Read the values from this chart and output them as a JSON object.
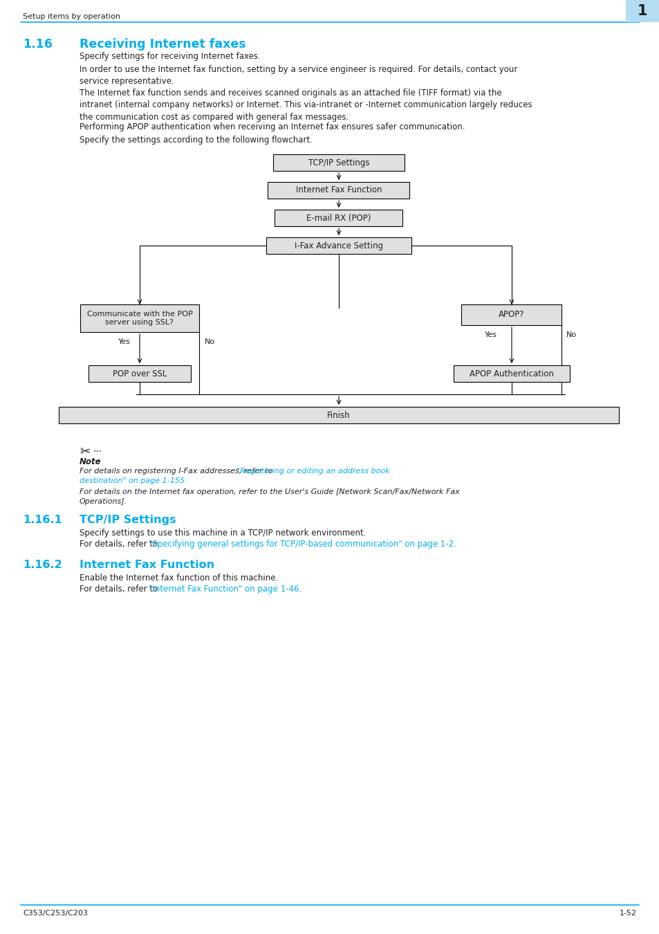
{
  "page_header_text": "Setup items by operation",
  "page_number": "1",
  "page_footer_left": "C353/C253/C203",
  "page_footer_right": "1-52",
  "cyan_color": "#00aeef",
  "dark_text": "#231f20",
  "section_number": "1.16",
  "section_title": "Receiving Internet faxes",
  "para1": "Specify settings for receiving Internet faxes.",
  "para2": "In order to use the Internet fax function, setting by a service engineer is required. For details, contact your\nservice representative.",
  "para3": "The Internet fax function sends and receives scanned originals as an attached file (TIFF format) via the\nintranet (internal company networks) or Internet. This via-intranet or -Internet communication largely reduces\nthe communication cost as compared with general fax messages.",
  "para4": "Performing APOP authentication when receiving an Internet fax ensures safer communication.",
  "para5": "Specify the settings according to the following flowchart.",
  "sub1_number": "1.16.1",
  "sub1_title": "TCP/IP Settings",
  "sub1_para": "Specify settings to use this machine in a TCP/IP network environment.",
  "sub1_link_pre": "For details, refer to ",
  "sub1_link": "\"Specifying general settings for TCP/IP-based communication\" on page 1-2.",
  "sub2_number": "1.16.2",
  "sub2_title": "Internet Fax Function",
  "sub2_para": "Enable the Internet fax function of this machine.",
  "sub2_link_pre": "For details, refer to ",
  "sub2_link": "\"Internet Fax Function\" on page 1-46.",
  "box_fill": "#e0e0e0",
  "box_border": "#000000"
}
